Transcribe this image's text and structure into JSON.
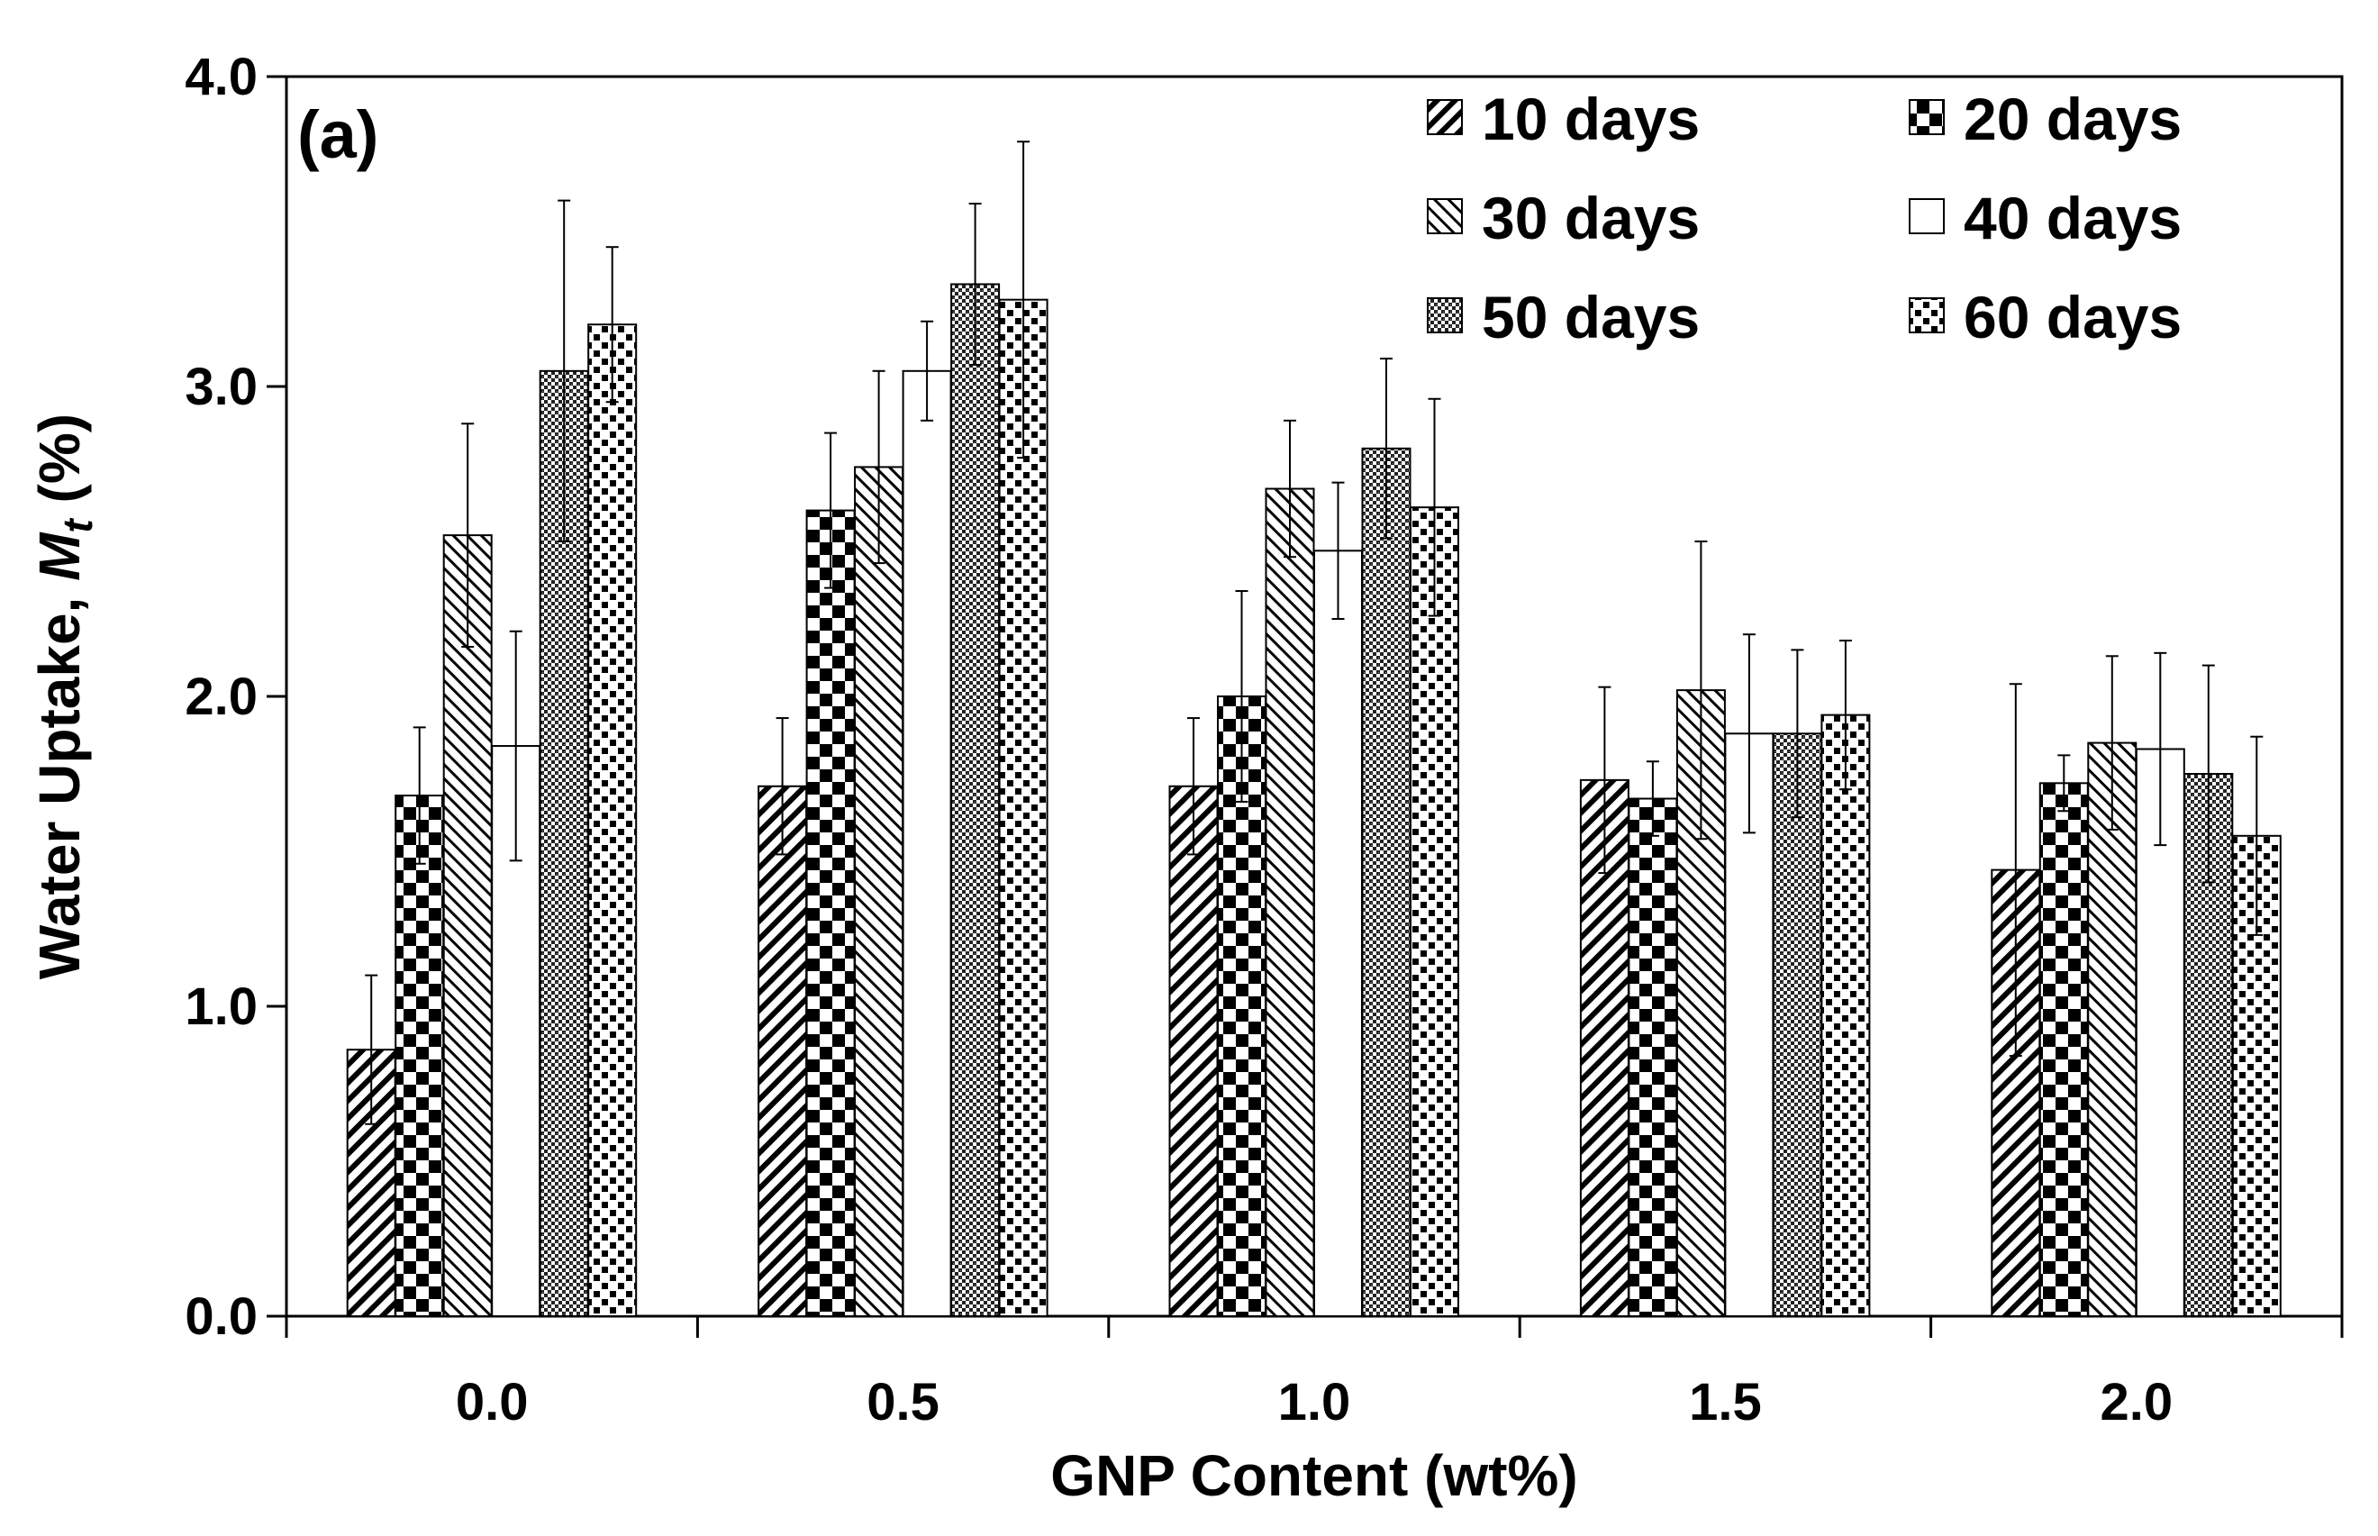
{
  "chart_data": {
    "type": "bar",
    "panel_label": "(a)",
    "title": "",
    "xlabel": "GNP Content (wt%)",
    "ylabel": {
      "prefix": "Water Uptake, ",
      "var": "M",
      "sub": "t",
      "suffix": " (%)"
    },
    "ylim": [
      0,
      4
    ],
    "yticks": [
      "0.0",
      "1.0",
      "2.0",
      "3.0",
      "4.0"
    ],
    "categories": [
      "0.0",
      "0.5",
      "1.0",
      "1.5",
      "2.0"
    ],
    "legend_position": "top-right",
    "series": [
      {
        "name": "10 days",
        "pattern": "diag",
        "values": [
          0.86,
          1.71,
          1.71,
          1.73,
          1.44
        ],
        "errors": [
          0.24,
          0.22,
          0.22,
          0.3,
          0.6
        ]
      },
      {
        "name": "20 days",
        "pattern": "checker",
        "values": [
          1.68,
          2.6,
          2.0,
          1.67,
          1.72
        ],
        "errors": [
          0.22,
          0.25,
          0.34,
          0.12,
          0.09
        ]
      },
      {
        "name": "30 days",
        "pattern": "backdiag",
        "values": [
          2.52,
          2.74,
          2.67,
          2.02,
          1.85
        ],
        "errors": [
          0.36,
          0.31,
          0.22,
          0.48,
          0.28
        ]
      },
      {
        "name": "40 days",
        "pattern": "plain",
        "values": [
          1.84,
          3.05,
          2.47,
          1.88,
          1.83
        ],
        "errors": [
          0.37,
          0.16,
          0.22,
          0.32,
          0.31
        ]
      },
      {
        "name": "50 days",
        "pattern": "crosshatch",
        "values": [
          3.05,
          3.33,
          2.8,
          1.88,
          1.75
        ],
        "errors": [
          0.55,
          0.26,
          0.29,
          0.27,
          0.35
        ]
      },
      {
        "name": "60 days",
        "pattern": "dots",
        "values": [
          3.2,
          3.28,
          2.61,
          1.94,
          1.55
        ],
        "errors": [
          0.25,
          0.51,
          0.35,
          0.24,
          0.32
        ]
      }
    ]
  }
}
